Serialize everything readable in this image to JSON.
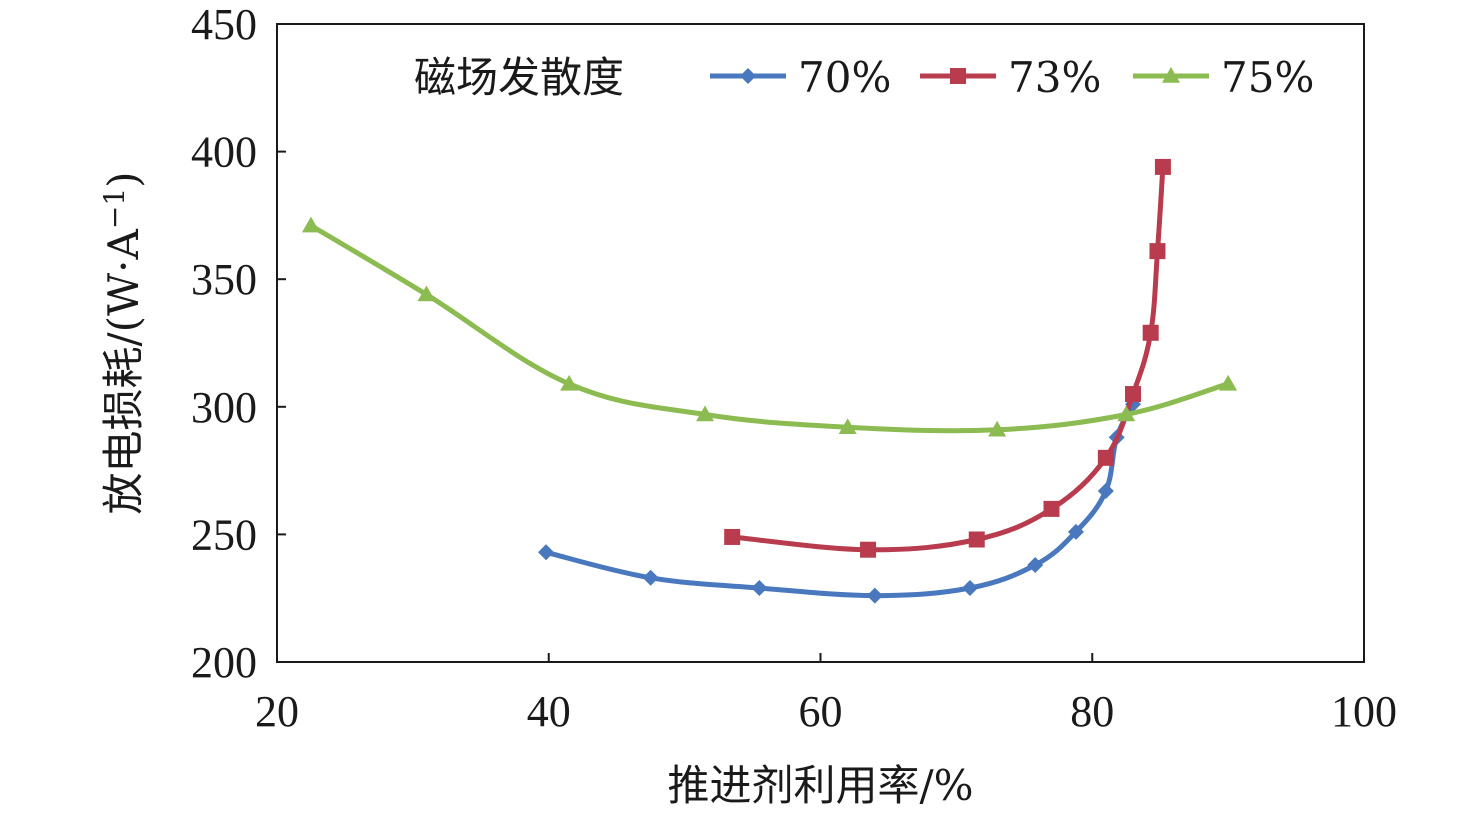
{
  "chart_data": {
    "type": "line",
    "title": "",
    "xlabel": "推进剂利用率/%",
    "ylabel_main": "放电损耗/(W·A",
    "ylabel_sup": "−1",
    "ylabel_close": ")",
    "xlim": [
      20,
      100
    ],
    "ylim": [
      200,
      450
    ],
    "xticks": [
      20,
      40,
      60,
      80,
      100
    ],
    "yticks": [
      200,
      250,
      300,
      350,
      400,
      450
    ],
    "grid": false,
    "legend": {
      "title": "磁场发散度",
      "position": "top-right"
    },
    "series": [
      {
        "name": "70%",
        "color": "#4a78be",
        "marker": "diamond",
        "x": [
          39.8,
          47.5,
          55.5,
          64.0,
          71.0,
          75.8,
          78.8,
          81.0,
          81.8,
          83.0
        ],
        "y": [
          243,
          233,
          229,
          226,
          229,
          238,
          251,
          267,
          288,
          301
        ]
      },
      {
        "name": "73%",
        "color": "#b83c4e",
        "marker": "square",
        "x": [
          53.5,
          63.5,
          71.5,
          77.0,
          81.0,
          83.0,
          84.3,
          84.8,
          85.2
        ],
        "y": [
          249,
          244,
          248,
          260,
          280,
          305,
          329,
          361,
          394
        ]
      },
      {
        "name": "75%",
        "color": "#8cbb52",
        "marker": "triangle",
        "x": [
          22.5,
          31.0,
          41.5,
          51.5,
          62.0,
          73.0,
          82.5,
          90.0
        ],
        "y": [
          371,
          344,
          309,
          297,
          292,
          291,
          297,
          309
        ]
      }
    ]
  }
}
